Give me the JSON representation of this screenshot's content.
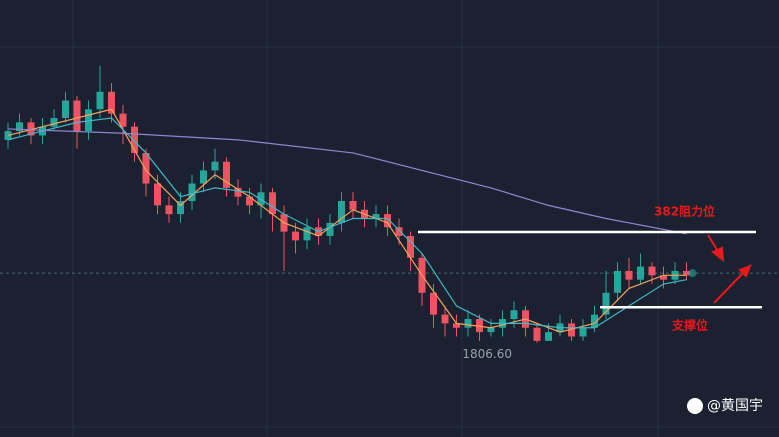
{
  "chart_data": {
    "type": "candlestick",
    "ylim": [
      1785,
      1885
    ],
    "up_color": "#26a69a",
    "down_color": "#ef5361",
    "open": [
      1853,
      1855,
      1857,
      1854,
      1856,
      1858,
      1862,
      1855,
      1860,
      1864,
      1859,
      1856,
      1850,
      1843,
      1838,
      1836,
      1839,
      1843,
      1846,
      1848,
      1842,
      1840,
      1838,
      1841,
      1836,
      1832,
      1830,
      1833,
      1831,
      1834,
      1839,
      1837,
      1835,
      1836,
      1833,
      1831,
      1826,
      1818,
      1813,
      1811,
      1810,
      1812,
      1809,
      1810,
      1812,
      1814,
      1810,
      1807,
      1809,
      1811,
      1808,
      1810,
      1813,
      1818,
      1823,
      1821,
      1824,
      1822,
      1821,
      1823
    ],
    "high": [
      1857,
      1859,
      1858,
      1858,
      1860,
      1864,
      1863,
      1862,
      1870,
      1866,
      1861,
      1857,
      1851,
      1845,
      1840,
      1841,
      1845,
      1848,
      1851,
      1849,
      1844,
      1842,
      1843,
      1842,
      1838,
      1834,
      1835,
      1835,
      1836,
      1841,
      1841,
      1839,
      1838,
      1838,
      1835,
      1832,
      1827,
      1820,
      1815,
      1813,
      1814,
      1813,
      1812,
      1814,
      1816,
      1815,
      1811,
      1811,
      1813,
      1812,
      1812,
      1815,
      1823,
      1825,
      1826,
      1827,
      1825,
      1824,
      1825,
      1825
    ],
    "low": [
      1851,
      1854,
      1852,
      1852,
      1855,
      1857,
      1851,
      1853,
      1858,
      1857,
      1852,
      1848,
      1840,
      1836,
      1834,
      1834,
      1837,
      1841,
      1844,
      1840,
      1838,
      1836,
      1835,
      1832,
      1823,
      1827,
      1828,
      1829,
      1829,
      1832,
      1835,
      1833,
      1833,
      1831,
      1829,
      1823,
      1815,
      1810,
      1808,
      1808,
      1808,
      1807,
      1808,
      1808,
      1810,
      1808,
      1806.6,
      1807,
      1808,
      1807,
      1807,
      1809,
      1812,
      1816,
      1819,
      1820,
      1820,
      1819,
      1820,
      1821
    ],
    "close": [
      1855,
      1857,
      1854,
      1856,
      1858,
      1862,
      1855,
      1860,
      1864,
      1859,
      1856,
      1850,
      1843,
      1838,
      1836,
      1839,
      1843,
      1846,
      1848,
      1842,
      1840,
      1838,
      1841,
      1836,
      1832,
      1830,
      1833,
      1831,
      1834,
      1839,
      1837,
      1835,
      1836,
      1833,
      1831,
      1826,
      1818,
      1813,
      1811,
      1810,
      1812,
      1809,
      1810,
      1812,
      1814,
      1810,
      1807,
      1809,
      1811,
      1808,
      1810,
      1813,
      1818,
      1823,
      1821,
      1824,
      1822,
      1821,
      1823,
      1822
    ],
    "moving_averages": [
      {
        "color": "#f0a35a",
        "x": [
          0,
          3,
          6,
          9,
          12,
          15,
          18,
          21,
          24,
          27,
          30,
          33,
          36,
          39,
          42,
          45,
          48,
          51,
          54,
          57,
          59
        ],
        "values": [
          1854,
          1856,
          1858,
          1860,
          1846,
          1838,
          1845,
          1840,
          1834,
          1831,
          1837,
          1834,
          1822,
          1811,
          1810,
          1812,
          1809,
          1811,
          1819,
          1822,
          1822
        ]
      },
      {
        "color": "#3fb8c4",
        "x": [
          0,
          3,
          6,
          9,
          12,
          15,
          18,
          21,
          24,
          27,
          30,
          33,
          36,
          39,
          42,
          45,
          48,
          51,
          54,
          57,
          59
        ],
        "values": [
          1853,
          1855,
          1857,
          1858,
          1850,
          1840,
          1842,
          1841,
          1836,
          1832,
          1835,
          1835,
          1827,
          1815,
          1811,
          1811,
          1810,
          1810,
          1815,
          1820,
          1821
        ]
      },
      {
        "color": "#8f86d6",
        "x": [
          0,
          10,
          20,
          30,
          36,
          42,
          47,
          52,
          59
        ],
        "values": [
          1855.5,
          1854.5,
          1853,
          1850,
          1846,
          1842,
          1838,
          1835,
          1831.5
        ]
      }
    ],
    "current_price": 1822.5,
    "low_label": {
      "value": 1806.6,
      "label": "1806.60"
    },
    "levels": [
      {
        "value": 1831.9,
        "label": "382阻力位"
      },
      {
        "value": 1814.7,
        "label": "支撑位"
      }
    ],
    "watermark": "@黄国宇"
  }
}
